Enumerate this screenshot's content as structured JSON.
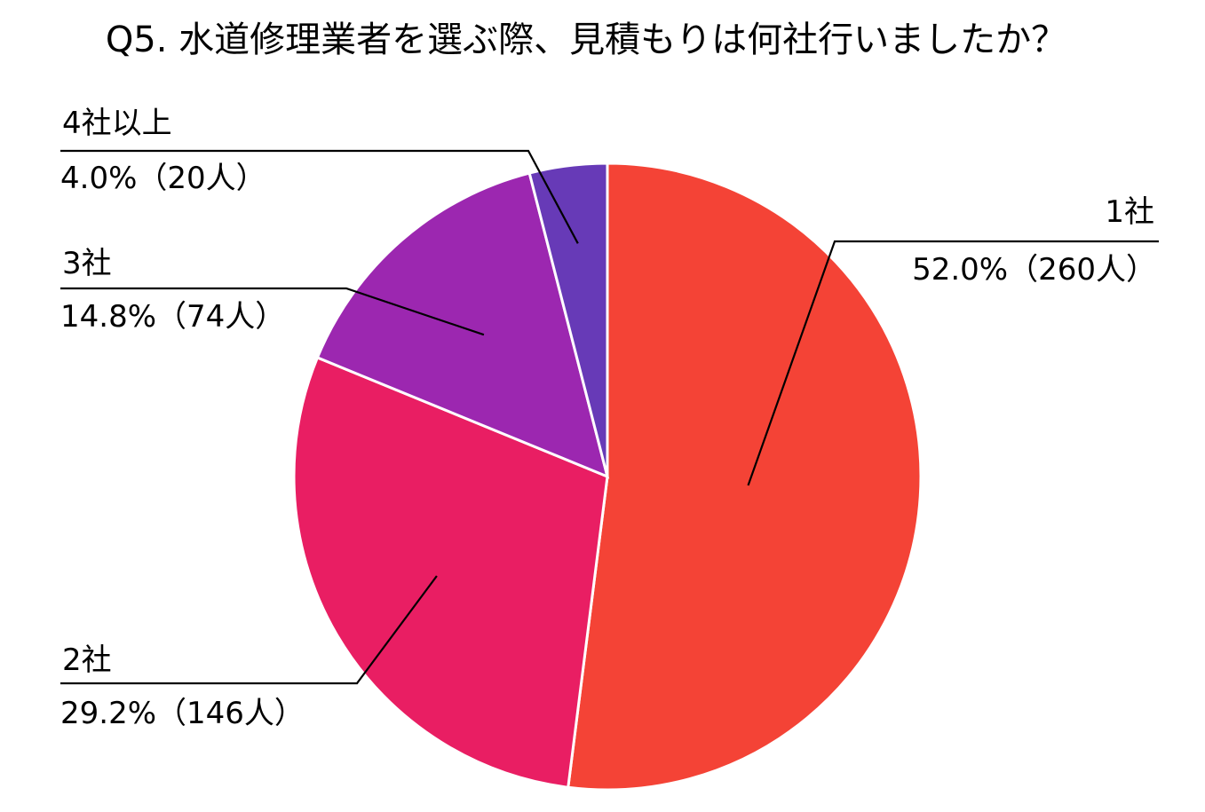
{
  "chart_data": {
    "type": "pie",
    "title": "Q5. 水道修理業者を選ぶ際、見積もりは何社行いましたか？",
    "slices": [
      {
        "category": "1社",
        "percent": 52.0,
        "count": 260,
        "value_label": "52.0%（260人）",
        "color": "#F44336"
      },
      {
        "category": "2社",
        "percent": 29.2,
        "count": 146,
        "value_label": "29.2%（146人）",
        "color": "#E91E63"
      },
      {
        "category": "3社",
        "percent": 14.8,
        "count": 74,
        "value_label": "14.8%（74人）",
        "color": "#9C27B0"
      },
      {
        "category": "4社以上",
        "percent": 4.0,
        "count": 20,
        "value_label": "4.0%（20人）",
        "color": "#673AB7"
      }
    ],
    "start_angle": "12 o'clock",
    "direction": "clockwise",
    "legend": "none"
  }
}
